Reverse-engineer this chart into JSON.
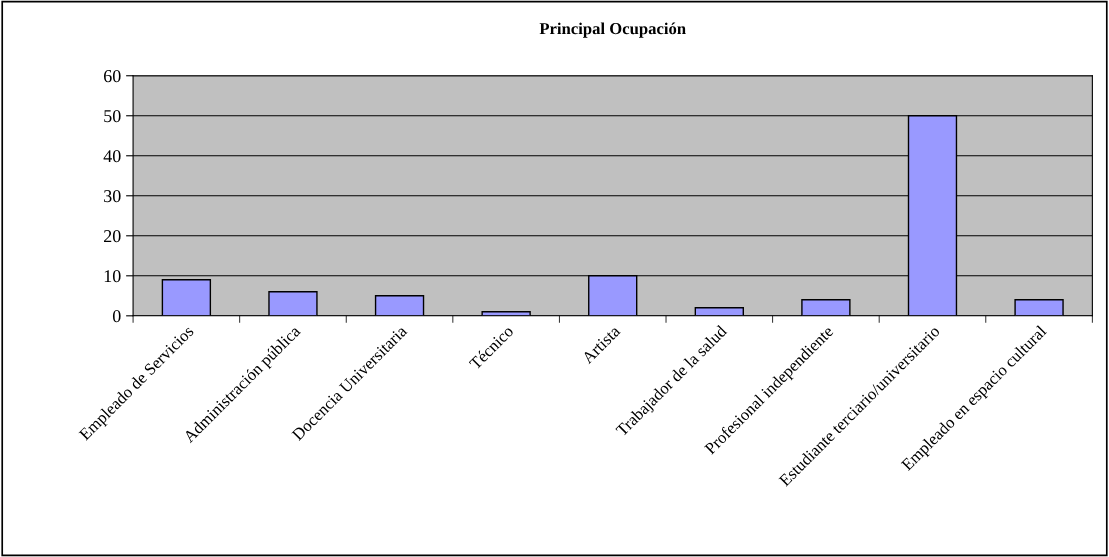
{
  "chart_data": {
    "type": "bar",
    "title": "Principal Ocupación",
    "categories": [
      "Empleado de Servicios",
      "Administración pública",
      "Docencia Universitaria",
      "Técnico",
      "Artista",
      "Trabajador de la salud",
      "Profesional independiente",
      "Estudiante terciario/universitario",
      "Empleado en espacio cultural"
    ],
    "values": [
      9,
      6,
      5,
      1,
      10,
      2,
      4,
      50,
      4
    ],
    "color": "#9999ff",
    "ylim": [
      0,
      60
    ],
    "yticks": [
      0,
      10,
      20,
      30,
      40,
      50,
      60
    ],
    "grid": "y"
  }
}
